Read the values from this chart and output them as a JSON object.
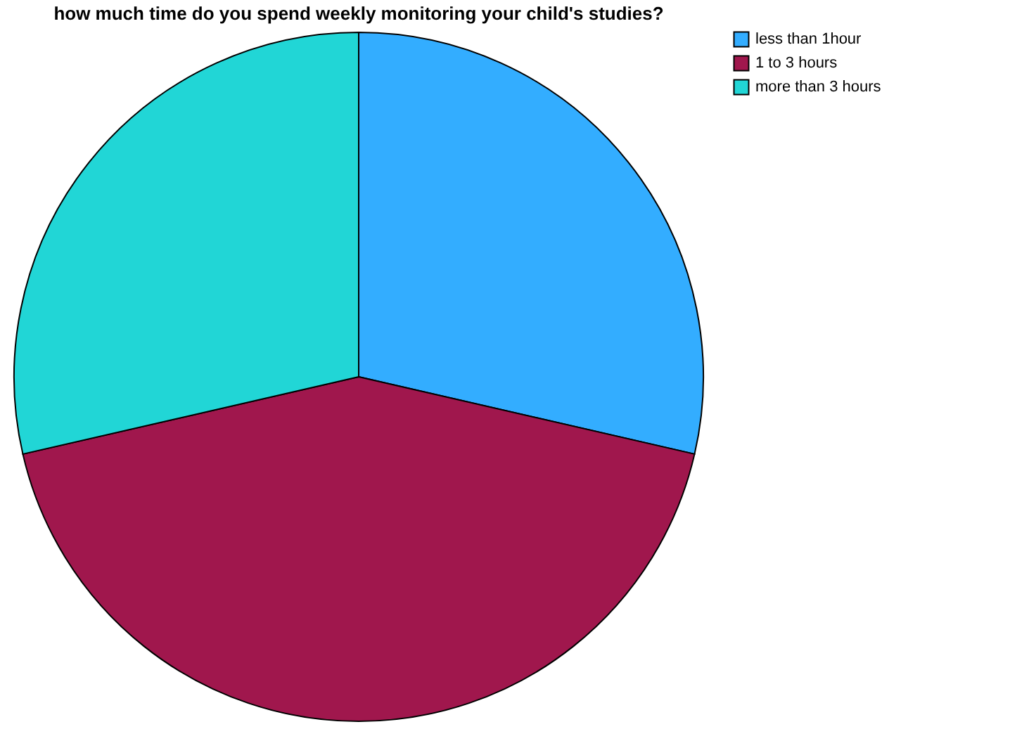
{
  "chart_data": {
    "type": "pie",
    "title": "how much time do you spend weekly monitoring your child's studies?",
    "categories": [
      "less than 1hour",
      "1 to 3 hours",
      "more than 3 hours"
    ],
    "values": [
      28.6,
      42.8,
      28.6
    ],
    "colors": [
      "#33adff",
      "#a0174d",
      "#21d6d6"
    ],
    "legend": "top right"
  }
}
